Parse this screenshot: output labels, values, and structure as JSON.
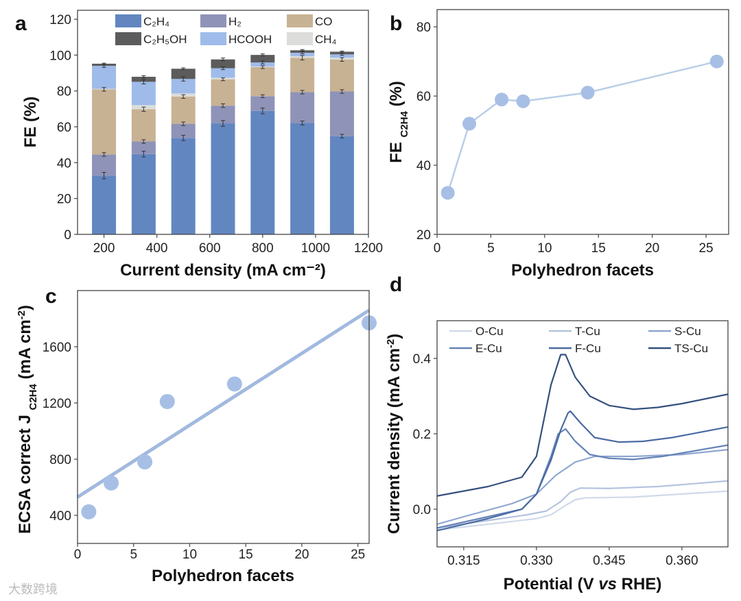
{
  "watermark": "大数跨境",
  "chart_data": [
    {
      "panel": "a",
      "type": "bar",
      "stacked": true,
      "xlabel": "Current density (mA cm⁻²)",
      "ylabel_parts": [
        {
          "t": "FE (%)"
        }
      ],
      "xlim": [
        100,
        1200
      ],
      "ylim": [
        0,
        125
      ],
      "xticks": [
        200,
        400,
        600,
        800,
        1000,
        1200
      ],
      "yticks": [
        0,
        20,
        40,
        60,
        80,
        100,
        120
      ],
      "categories": [
        200,
        350,
        500,
        650,
        800,
        950,
        1100
      ],
      "legend_position": "top",
      "series": [
        {
          "name": "C₂H₄",
          "color": "#6286c0",
          "values": [
            32.8,
            44.8,
            53.8,
            61.9,
            68.9,
            62.1,
            54.8
          ],
          "err": [
            1.8,
            1.6,
            1.5,
            1.6,
            1.6,
            1.1,
            1.0
          ]
        },
        {
          "name": "H₂",
          "color": "#8f93b8",
          "values": [
            11.8,
            7.0,
            7.9,
            9.9,
            8.2,
            17.2,
            24.9
          ],
          "err": [
            1.0,
            1.0,
            1.0,
            1.0,
            0.8,
            1.0,
            1.0
          ]
        },
        {
          "name": "CO",
          "color": "#c8b294",
          "values": [
            36.3,
            18.0,
            15.2,
            14.7,
            16.2,
            19.2,
            17.8
          ],
          "err": [
            1.0,
            1.2,
            1.0,
            0.8,
            0.8,
            1.2,
            1.0
          ]
        },
        {
          "name": "CH₄",
          "color": "#dcdddb",
          "values": [
            0.3,
            2.3,
            1.7,
            0.9,
            0.3,
            0.9,
            1.1
          ],
          "err": [
            0,
            0,
            0,
            0,
            0,
            0,
            0
          ]
        },
        {
          "name": "HCOOH",
          "color": "#9fbbea",
          "values": [
            12.8,
            13.0,
            8.1,
            5.3,
            2.3,
            1.9,
            1.8
          ],
          "err": [
            0.8,
            1.2,
            1.2,
            0.8,
            0.8,
            0.6,
            0.6
          ]
        },
        {
          "name": "C₂H₅OH",
          "color": "#5c5c5c",
          "values": [
            1.2,
            2.8,
            5.7,
            4.9,
            4.2,
            1.4,
            1.5
          ],
          "err": [
            0.3,
            0.6,
            0.5,
            0.8,
            0.6,
            0.4,
            0.3
          ]
        }
      ],
      "legend_order": [
        "C₂H₄",
        "H₂",
        "CO",
        "C₂H₅OH",
        "HCOOH",
        "CH₄"
      ]
    },
    {
      "panel": "b",
      "type": "line",
      "xlabel": "Polyhedron facets",
      "ylabel_parts": [
        {
          "t": "FE "
        },
        {
          "t": "C2H4",
          "sub": true
        },
        {
          "t": " (%)"
        }
      ],
      "xlim": [
        0,
        27.1
      ],
      "ylim": [
        20,
        85
      ],
      "xticks": [
        0,
        5,
        10,
        15,
        20,
        25
      ],
      "yticks": [
        20,
        40,
        60,
        80
      ],
      "x": [
        1,
        3,
        6,
        8,
        14,
        26
      ],
      "y": [
        32,
        52,
        59,
        58.5,
        61,
        70
      ],
      "marker_color": "#a7bfe5",
      "line_color": "#b9cee7"
    },
    {
      "panel": "c",
      "type": "scatter",
      "xlabel": "Polyhedron facets",
      "ylabel_parts": [
        {
          "t": "ECSA correct J "
        },
        {
          "t": "C2H4",
          "sub": true
        },
        {
          "t": " (mA cm"
        },
        {
          "t": "-2",
          "sup": true
        },
        {
          "t": ")"
        }
      ],
      "xlim": [
        0,
        26
      ],
      "ylim": [
        200,
        2000
      ],
      "xticks": [
        0,
        5,
        10,
        15,
        20,
        25
      ],
      "yticks": [
        400,
        800,
        1200,
        1600
      ],
      "x": [
        1,
        3,
        6,
        8,
        14,
        26
      ],
      "y": [
        425,
        630,
        780,
        1210,
        1335,
        1770
      ],
      "fit_line": {
        "x": [
          0,
          26
        ],
        "y": [
          530,
          1860
        ]
      },
      "marker_color": "#a7bfe5",
      "line_color": "#a2b9df"
    },
    {
      "panel": "d",
      "type": "line",
      "xlabel_parts": [
        {
          "t": "Potential (V "
        },
        {
          "t": "vs",
          "italic": true
        },
        {
          "t": " RHE)"
        }
      ],
      "ylabel_parts": [
        {
          "t": "Current density (mA cm"
        },
        {
          "t": "-2",
          "sup": true
        },
        {
          "t": ")"
        }
      ],
      "xlim": [
        0.3095,
        0.3695
      ],
      "ylim": [
        -0.1,
        0.5
      ],
      "xticks": [
        0.315,
        0.33,
        0.345,
        0.36
      ],
      "yticks": [
        0.0,
        0.2,
        0.4
      ],
      "legend_position": "top",
      "series": [
        {
          "name": "O-Cu",
          "color": "#d0dae9",
          "points": [
            [
              0.3095,
              -0.055
            ],
            [
              0.32,
              -0.04
            ],
            [
              0.33,
              -0.025
            ],
            [
              0.333,
              -0.015
            ],
            [
              0.336,
              0.01
            ],
            [
              0.338,
              0.025
            ],
            [
              0.34,
              0.03
            ],
            [
              0.35,
              0.032
            ],
            [
              0.3695,
              0.048
            ]
          ]
        },
        {
          "name": "T-Cu",
          "color": "#b3c3de",
          "points": [
            [
              0.3095,
              -0.05
            ],
            [
              0.32,
              -0.03
            ],
            [
              0.328,
              -0.015
            ],
            [
              0.332,
              -0.005
            ],
            [
              0.335,
              0.02
            ],
            [
              0.337,
              0.045
            ],
            [
              0.339,
              0.056
            ],
            [
              0.345,
              0.055
            ],
            [
              0.355,
              0.06
            ],
            [
              0.3695,
              0.075
            ]
          ]
        },
        {
          "name": "S-Cu",
          "color": "#8ea6cf",
          "points": [
            [
              0.3095,
              -0.04
            ],
            [
              0.315,
              -0.02
            ],
            [
              0.325,
              0.015
            ],
            [
              0.33,
              0.04
            ],
            [
              0.334,
              0.09
            ],
            [
              0.338,
              0.125
            ],
            [
              0.342,
              0.14
            ],
            [
              0.35,
              0.14
            ],
            [
              0.36,
              0.145
            ],
            [
              0.3695,
              0.158
            ]
          ]
        },
        {
          "name": "E-Cu",
          "color": "#6583b8",
          "points": [
            [
              0.3095,
              -0.05
            ],
            [
              0.32,
              -0.02
            ],
            [
              0.327,
              0.0
            ],
            [
              0.33,
              0.04
            ],
            [
              0.333,
              0.14
            ],
            [
              0.3345,
              0.2
            ],
            [
              0.336,
              0.213
            ],
            [
              0.338,
              0.18
            ],
            [
              0.341,
              0.145
            ],
            [
              0.345,
              0.135
            ],
            [
              0.35,
              0.132
            ],
            [
              0.356,
              0.14
            ],
            [
              0.3695,
              0.17
            ]
          ]
        },
        {
          "name": "F-Cu",
          "color": "#4a6aa3",
          "points": [
            [
              0.3095,
              -0.057
            ],
            [
              0.32,
              -0.025
            ],
            [
              0.327,
              0.0
            ],
            [
              0.33,
              0.04
            ],
            [
              0.333,
              0.13
            ],
            [
              0.335,
              0.21
            ],
            [
              0.3365,
              0.255
            ],
            [
              0.337,
              0.26
            ],
            [
              0.339,
              0.23
            ],
            [
              0.342,
              0.19
            ],
            [
              0.347,
              0.178
            ],
            [
              0.352,
              0.18
            ],
            [
              0.358,
              0.19
            ],
            [
              0.3695,
              0.218
            ]
          ]
        },
        {
          "name": "TS-Cu",
          "color": "#34507f",
          "points": [
            [
              0.3095,
              0.035
            ],
            [
              0.32,
              0.06
            ],
            [
              0.327,
              0.085
            ],
            [
              0.33,
              0.14
            ],
            [
              0.333,
              0.33
            ],
            [
              0.335,
              0.41
            ],
            [
              0.336,
              0.41
            ],
            [
              0.338,
              0.35
            ],
            [
              0.341,
              0.3
            ],
            [
              0.345,
              0.275
            ],
            [
              0.35,
              0.265
            ],
            [
              0.355,
              0.27
            ],
            [
              0.36,
              0.28
            ],
            [
              0.3695,
              0.305
            ]
          ]
        }
      ]
    }
  ],
  "panels": [
    "a",
    "b",
    "c",
    "d"
  ]
}
